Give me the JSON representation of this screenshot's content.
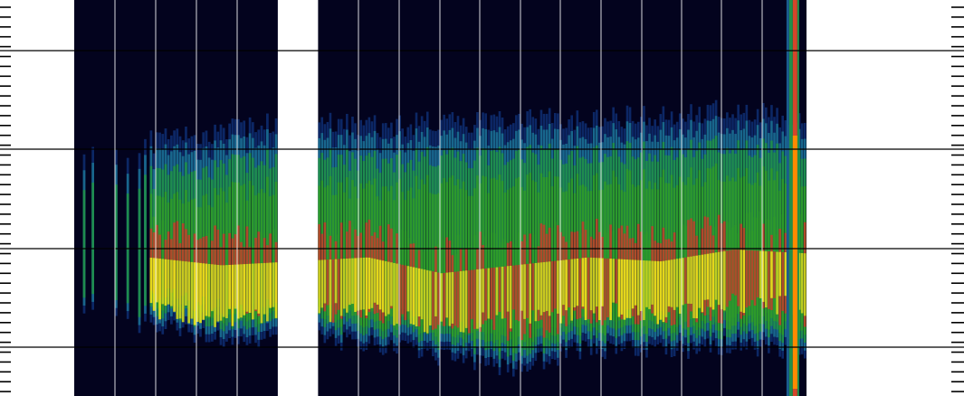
{
  "chart_data": {
    "type": "heatmap",
    "title": "",
    "xlabel": "",
    "ylabel": "",
    "grid": true,
    "legend": "none",
    "colormap": [
      "#02031f",
      "#0d2a6b",
      "#1a6b8f",
      "#1f8f4a",
      "#2e9a2a",
      "#b8442a",
      "#c9d21f",
      "#e8e21a",
      "#ff8a00"
    ],
    "background_color": "#03031e",
    "gap_color": "#ffffff",
    "blocks": [
      {
        "name": "block-1",
        "x_start": 0.0,
        "x_end": 0.278,
        "columns": 70,
        "spike_only_until": 0.36
      },
      {
        "name": "block-2",
        "x_start": 0.333,
        "x_end": 1.0,
        "columns": 176
      }
    ],
    "band_profile": {
      "upper_edge_y": [
        0.4,
        0.36,
        0.33,
        0.3,
        0.32,
        0.31,
        0.3,
        0.3,
        0.29,
        0.28,
        0.3
      ],
      "lower_edge_y": [
        0.8,
        0.82,
        0.86,
        0.85,
        0.87,
        0.9,
        0.93,
        0.88,
        0.89,
        0.87,
        0.9
      ],
      "core_y": [
        0.68,
        0.7,
        0.72,
        0.71,
        0.7,
        0.74,
        0.72,
        0.7,
        0.71,
        0.68,
        0.69
      ],
      "intensity": [
        0.6,
        0.9,
        0.95,
        0.85,
        0.9,
        0.8,
        0.75,
        0.9,
        0.95,
        0.8,
        0.85
      ]
    },
    "right_edge_burst": {
      "x": 0.985,
      "color_core": "#ff8a00",
      "color_edge": "#1f8f4a"
    }
  }
}
